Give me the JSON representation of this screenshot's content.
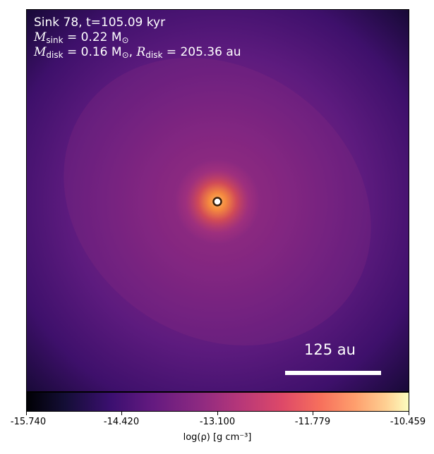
{
  "annotation": {
    "line1": "Sink 78, t=105.09 kyr",
    "m_sink_label": "M",
    "m_sink_sub": "sink",
    "m_sink_value": " = 0.22 M",
    "m_sink_unit_sub": "⊙",
    "m_disk_label": "M",
    "m_disk_sub": "disk",
    "m_disk_value": " = 0.16 M",
    "m_disk_unit_sub": "⊙",
    "r_disk_sep": ", ",
    "r_disk_label": "R",
    "r_disk_sub": "disk",
    "r_disk_value": " = 205.36 au"
  },
  "scale_bar": {
    "label": "125 au"
  },
  "colorbar": {
    "colormap": "inferno",
    "ticks": [
      "-15.740",
      "-14.420",
      "-13.100",
      "-11.779",
      "-10.459"
    ],
    "label": "log(ρ) [g cm⁻³]"
  },
  "colors": {
    "background_dark": "#3a0f63",
    "mid": "#7a2380",
    "core": "#f5a35a"
  }
}
